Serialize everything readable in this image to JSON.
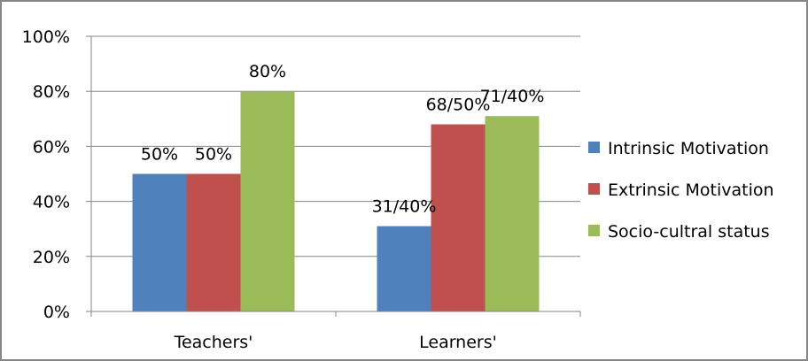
{
  "chart_data": {
    "type": "bar",
    "categories": [
      "Teachers'",
      "Learners'"
    ],
    "series": [
      {
        "name": "Intrinsic Motivation",
        "color": "#4F81BD",
        "values": [
          50,
          31
        ],
        "labels": [
          "50%",
          "31/40%"
        ]
      },
      {
        "name": "Extrinsic Motivation",
        "color": "#C0504D",
        "values": [
          50,
          68
        ],
        "labels": [
          "50%",
          "68/50%"
        ]
      },
      {
        "name": "Socio-cultral status",
        "color": "#9BBB59",
        "values": [
          80,
          71
        ],
        "labels": [
          "80%",
          "71/40%"
        ]
      }
    ],
    "ylim": [
      0,
      100
    ],
    "yticks": [
      0,
      20,
      40,
      60,
      80,
      100
    ],
    "ytick_labels": [
      "0%",
      "20%",
      "40%",
      "60%",
      "80%",
      "100%"
    ],
    "grid": true,
    "legend_position": "right"
  }
}
